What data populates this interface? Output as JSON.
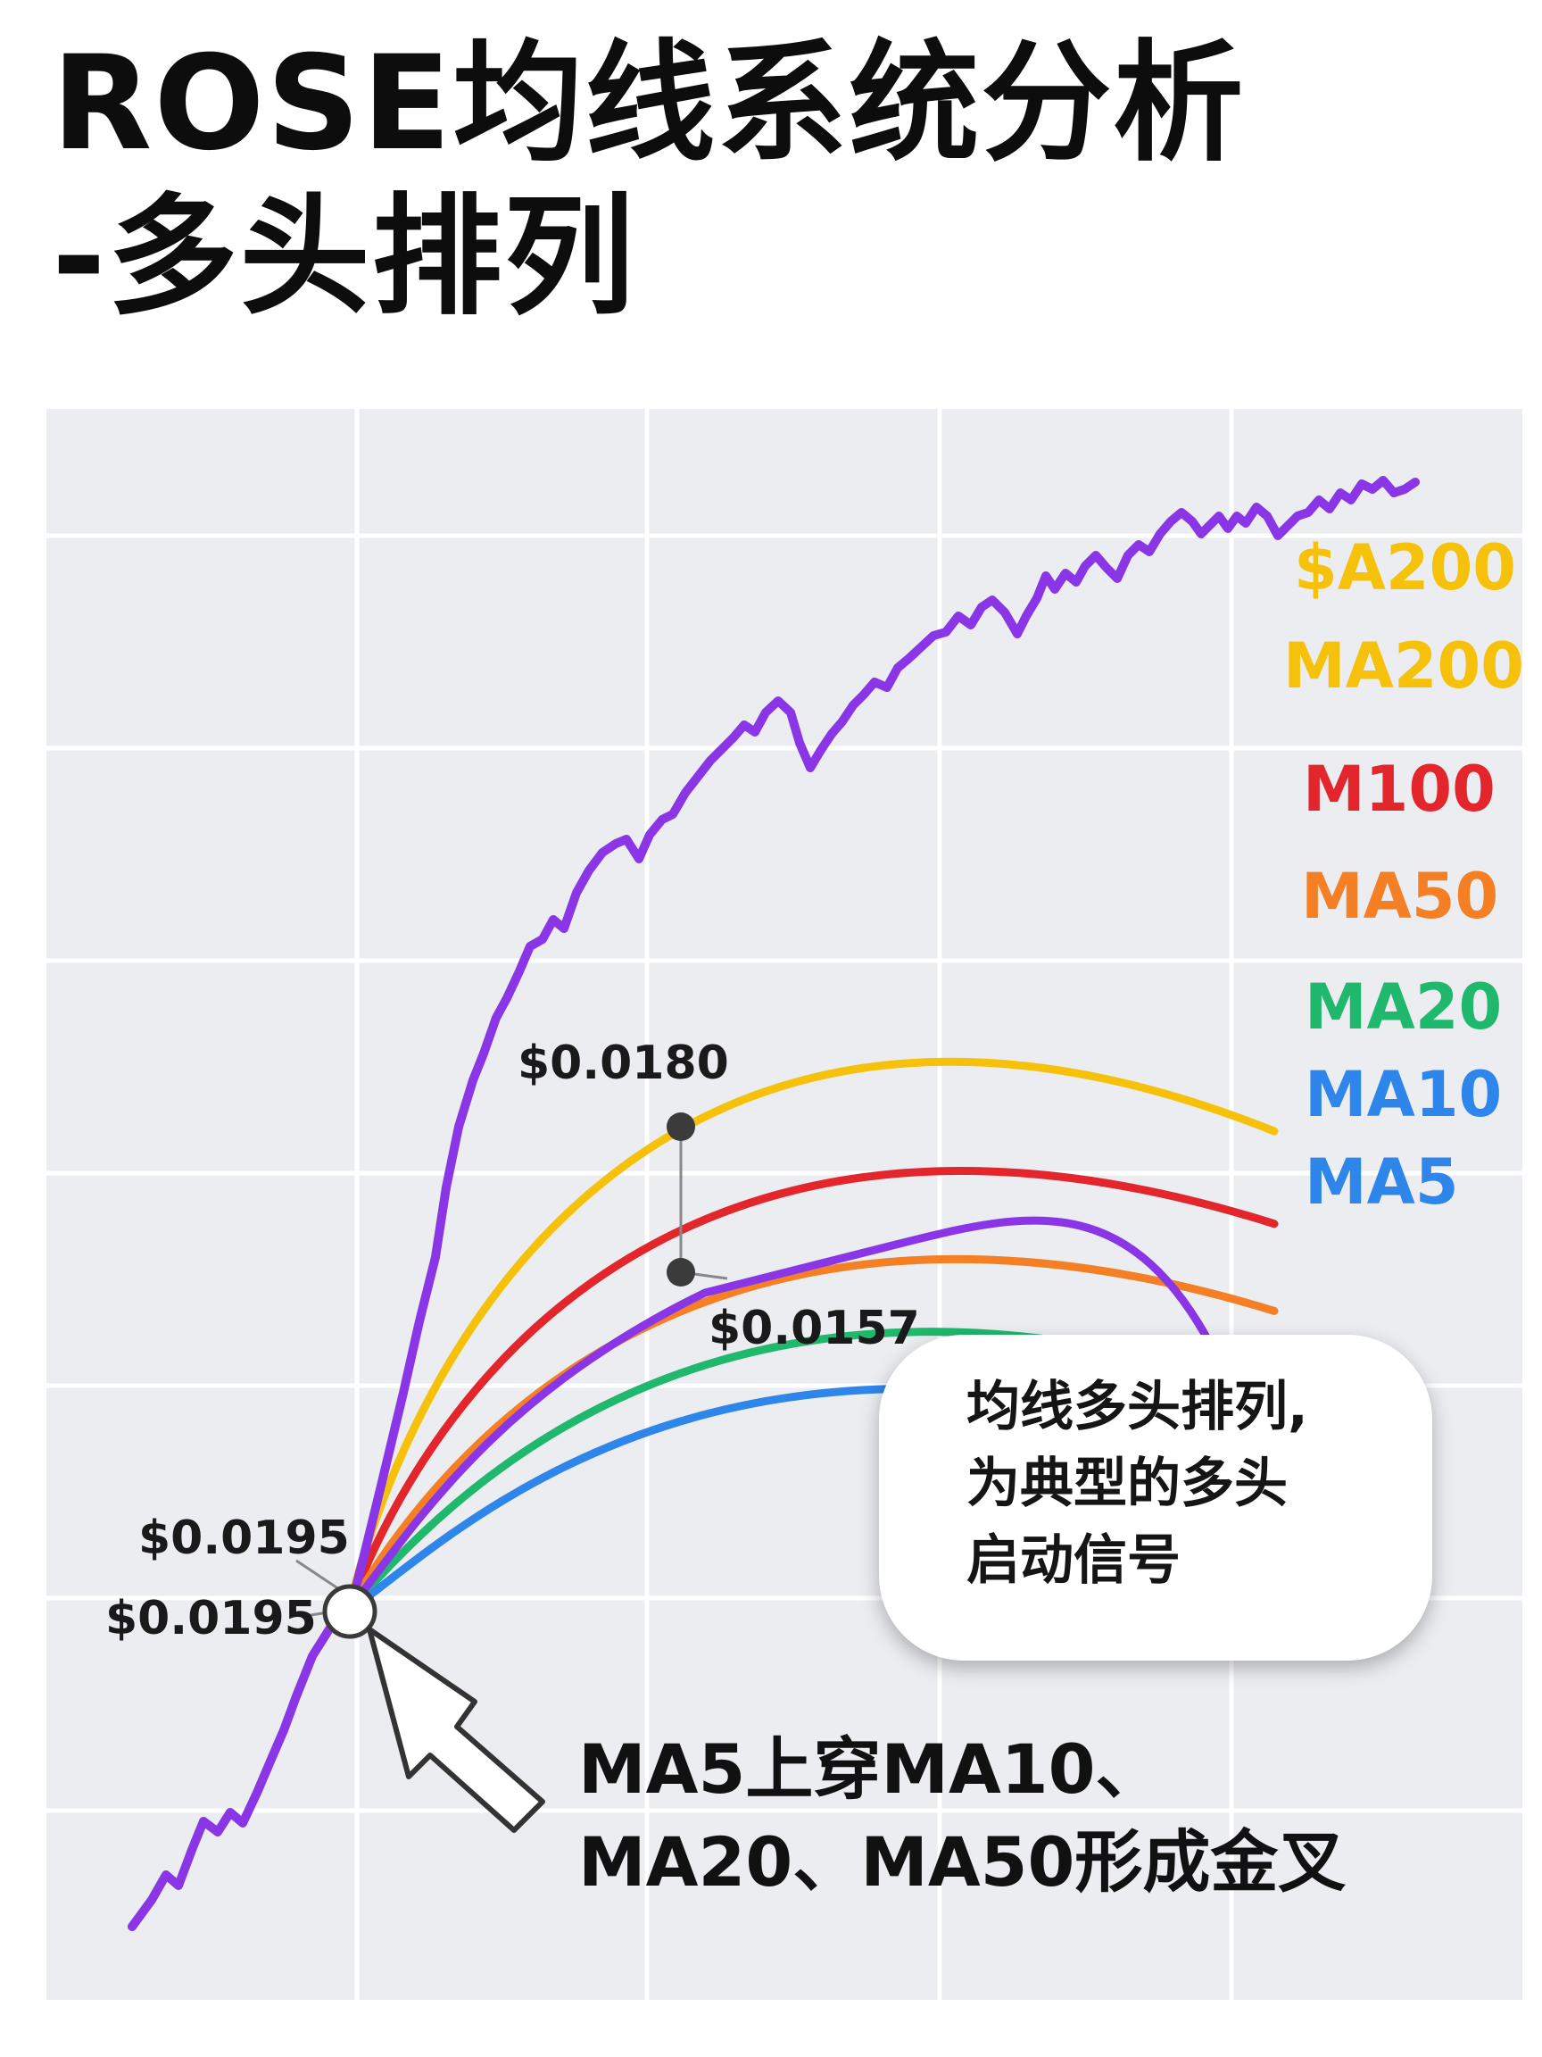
{
  "header": {
    "title_line1": "ROSE均线系统分析",
    "title_line2": "-多头排列"
  },
  "colors": {
    "price": "#8a35e6",
    "MA5": "#8a35e6",
    "MA10": "#2f86ea",
    "MA20": "#1fb86c",
    "MA50": "#f57f24",
    "M100": "#e3262c",
    "MA200": "#f5c10a",
    "A200_label": "#f5c10a",
    "plot_bg": "#ebedf1",
    "grid": "#ffffff"
  },
  "annotations": {
    "upper_price": "$0.0180",
    "lower_price": "$0.0157",
    "cross_price_1": "$0.0195",
    "cross_price_2": "$0.0195"
  },
  "callout": {
    "line1": "均线多头排列,",
    "line2": "为典型的多头",
    "line3": "启动信号"
  },
  "bottom_note": {
    "line1": "MA5上穿MA10、",
    "line2": "MA20、MA50形成金叉"
  },
  "chart_data": {
    "type": "line",
    "grid": true,
    "legend": "right-end labels",
    "series": [
      {
        "name": "$A200",
        "key": "price",
        "trace": "price"
      },
      {
        "name": "MA200",
        "key": "MA200",
        "end": 0.0239
      },
      {
        "name": "M100",
        "key": "M100",
        "end": 0.0222
      },
      {
        "name": "MA50",
        "key": "MA50",
        "end": 0.0206
      },
      {
        "name": "MA20",
        "key": "MA20",
        "end": 0.0191
      },
      {
        "name": "MA10",
        "key": "MA10",
        "end": 0.018
      },
      {
        "name": "MA5",
        "key": "MA5",
        "end": 0.0169
      }
    ]
  }
}
